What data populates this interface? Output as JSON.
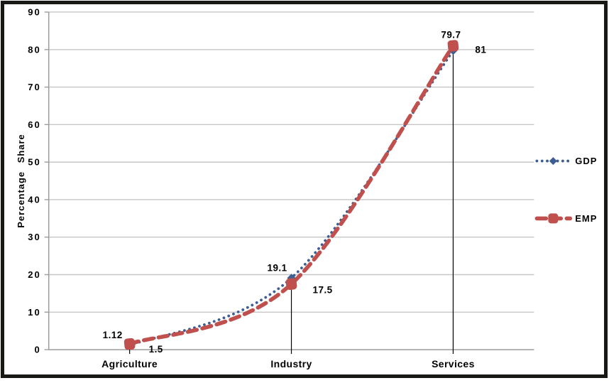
{
  "chart_data": {
    "type": "line",
    "title": "",
    "xlabel": "",
    "ylabel": "Percentage Share",
    "categories": [
      "Agriculture",
      "Industry",
      "Services"
    ],
    "series": [
      {
        "name": "GDP",
        "values": [
          1.12,
          19.1,
          79.7
        ],
        "labels": [
          "1.12",
          "19.1",
          "79.7"
        ],
        "color": "#3D5E92",
        "label_color": "#4477C1",
        "line_style": "dotted",
        "marker": "diamond"
      },
      {
        "name": "EMP",
        "values": [
          1.5,
          17.5,
          81
        ],
        "labels": [
          "1.5",
          "17.5",
          "81"
        ],
        "color": "#C0504D",
        "label_color": "#C00000",
        "line_style": "dashed",
        "marker": "rounded-square"
      }
    ],
    "ylim": [
      0,
      90
    ],
    "ytick_step": 10,
    "grid": "horizontal-only",
    "gridline_color": "#C6C6C6",
    "axis_color": "#9C9C9C",
    "dropline_color": "#000000",
    "legend_position": "right",
    "legend_entries": [
      "GDP",
      "EMP"
    ],
    "frame_color": "#181815",
    "background_color": "#FFFFFF",
    "smooth_lines": true,
    "droplines": true
  }
}
